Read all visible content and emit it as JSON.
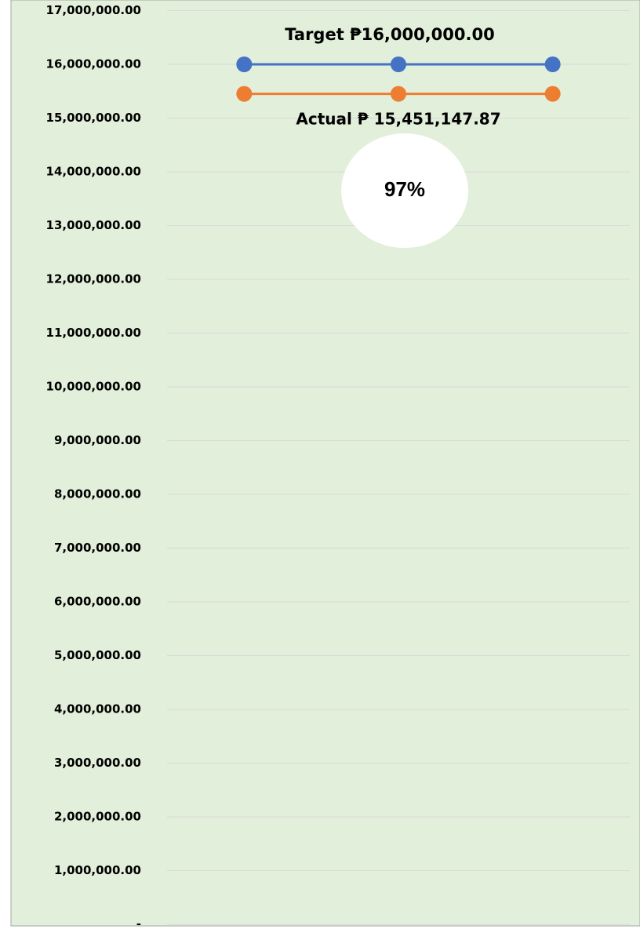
{
  "chart_data": {
    "type": "line",
    "categories": [
      null,
      null,
      null
    ],
    "series": [
      {
        "color": "#4472c4",
        "values": [
          16000000,
          16000000,
          16000000
        ]
      },
      {
        "color": "#ed7d31",
        "values": [
          15451147.87,
          15451147.87,
          15451147.87
        ]
      }
    ],
    "annotations": [
      "Target ₱16,000,000.00",
      "Actual ₱ 15,451,147.87",
      "97%"
    ],
    "ylim": [
      0,
      17000000
    ],
    "yticks": [
      {
        "value": 0,
        "label": "-"
      },
      {
        "value": 1000000,
        "label": "1,000,000.00"
      },
      {
        "value": 2000000,
        "label": "2,000,000.00"
      },
      {
        "value": 3000000,
        "label": "3,000,000.00"
      },
      {
        "value": 4000000,
        "label": "4,000,000.00"
      },
      {
        "value": 5000000,
        "label": "5,000,000.00"
      },
      {
        "value": 6000000,
        "label": "6,000,000.00"
      },
      {
        "value": 7000000,
        "label": "7,000,000.00"
      },
      {
        "value": 8000000,
        "label": "8,000,000.00"
      },
      {
        "value": 9000000,
        "label": "9,000,000.00"
      },
      {
        "value": 10000000,
        "label": "10,000,000.00"
      },
      {
        "value": 11000000,
        "label": "11,000,000.00"
      },
      {
        "value": 12000000,
        "label": "12,000,000.00"
      },
      {
        "value": 13000000,
        "label": "13,000,000.00"
      },
      {
        "value": 14000000,
        "label": "14,000,000.00"
      },
      {
        "value": 15000000,
        "label": "15,000,000.00"
      },
      {
        "value": 16000000,
        "label": "16,000,000.00"
      },
      {
        "value": 17000000,
        "label": "17,000,000.00"
      }
    ],
    "grid": true
  }
}
